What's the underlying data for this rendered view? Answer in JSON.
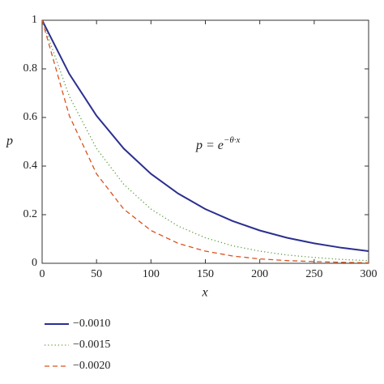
{
  "chart_data": {
    "type": "line",
    "x_label": "x",
    "y_label": "p",
    "annotation": {
      "base": "p = e",
      "exponent": "−θ·x"
    },
    "x": [
      0,
      25,
      50,
      75,
      100,
      125,
      150,
      175,
      200,
      225,
      250,
      275,
      300
    ],
    "series": [
      {
        "name": "−0.0010",
        "color": "#2b2f8f",
        "style": "solid",
        "values": [
          1,
          0.779,
          0.607,
          0.472,
          0.368,
          0.287,
          0.223,
          0.174,
          0.135,
          0.105,
          0.082,
          0.064,
          0.05
        ]
      },
      {
        "name": "−0.0015",
        "color": "#5a9a3a",
        "style": "dotted",
        "values": [
          1,
          0.687,
          0.472,
          0.325,
          0.223,
          0.153,
          0.105,
          0.072,
          0.05,
          0.034,
          0.024,
          0.016,
          0.011
        ]
      },
      {
        "name": "−0.0020",
        "color": "#d9531e",
        "style": "dashed",
        "values": [
          1,
          0.607,
          0.368,
          0.223,
          0.135,
          0.082,
          0.05,
          0.03,
          0.018,
          0.011,
          0.007,
          0.004,
          0.002
        ]
      }
    ],
    "xlim": [
      0,
      300
    ],
    "xticks": [
      0,
      50,
      100,
      150,
      200,
      250,
      300
    ],
    "ylim": [
      0,
      1
    ],
    "yticks": [
      0,
      0.2,
      0.4,
      0.6,
      0.8,
      1
    ],
    "grid": false,
    "legend": "bottom-left"
  }
}
